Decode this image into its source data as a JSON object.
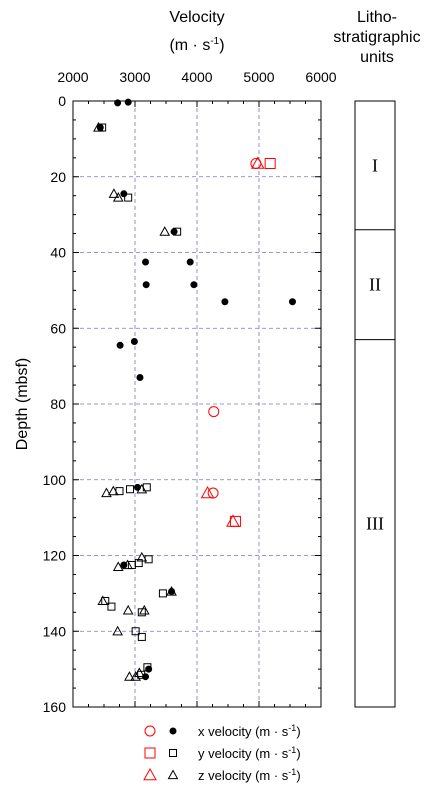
{
  "chart_data": {
    "type": "scatter",
    "title_line1": "Velocity",
    "title_line2_main": "(m · s",
    "title_line2_sup": "-1",
    "title_line2_close": ")",
    "ylabel": "Depth (mbsf)",
    "xlim": [
      2000,
      6000
    ],
    "ylim": [
      0,
      160
    ],
    "xticks": [
      2000,
      3000,
      4000,
      5000,
      6000
    ],
    "xtick_labels": [
      "2000",
      "3000",
      "4000",
      "5000",
      "6000"
    ],
    "yticks": [
      0,
      20,
      40,
      60,
      80,
      100,
      120,
      140,
      160
    ],
    "ytick_labels": [
      "0",
      "20",
      "40",
      "60",
      "80",
      "100",
      "120",
      "140",
      "160"
    ],
    "grid": true,
    "series": [
      {
        "name": "x velocity (m · s-1)",
        "component": "x",
        "kind": "lab",
        "marker": "circle-open",
        "color": "#ff0000",
        "points": [
          [
            4950,
            16.5
          ],
          [
            4260,
            103.5
          ],
          [
            4270,
            82
          ]
        ]
      },
      {
        "name": "x velocity (m · s-1)",
        "component": "x",
        "kind": "field",
        "marker": "circle-filled",
        "color": "#000000",
        "points": [
          [
            2720,
            0.5
          ],
          [
            2890,
            0.3
          ],
          [
            2440,
            7
          ],
          [
            2820,
            24.5
          ],
          [
            3630,
            34.5
          ],
          [
            3170,
            42.5
          ],
          [
            3890,
            42.5
          ],
          [
            3180,
            48.5
          ],
          [
            3950,
            48.5
          ],
          [
            4450,
            53
          ],
          [
            5540,
            53
          ],
          [
            2990,
            63.5
          ],
          [
            2760,
            64.5
          ],
          [
            3080,
            73
          ],
          [
            3040,
            102
          ],
          [
            2820,
            122.5
          ],
          [
            3590,
            129.5
          ],
          [
            3220,
            150
          ],
          [
            3170,
            152
          ]
        ]
      },
      {
        "name": "y velocity (m · s-1)",
        "component": "y",
        "kind": "lab",
        "marker": "square-open",
        "color": "#ff0000",
        "points": [
          [
            5180,
            16.5
          ],
          [
            4620,
            111
          ]
        ]
      },
      {
        "name": "y velocity (m · s-1)",
        "component": "y",
        "kind": "field",
        "marker": "square-open",
        "color": "#000000",
        "points": [
          [
            2470,
            7
          ],
          [
            2890,
            25.5
          ],
          [
            3680,
            34.5
          ],
          [
            2750,
            103
          ],
          [
            2920,
            102.5
          ],
          [
            3190,
            102
          ],
          [
            3220,
            121
          ],
          [
            2950,
            122.5
          ],
          [
            3060,
            122
          ],
          [
            2520,
            132
          ],
          [
            2620,
            133.5
          ],
          [
            3450,
            130
          ],
          [
            3110,
            135
          ],
          [
            3010,
            140
          ],
          [
            3110,
            141.5
          ],
          [
            3200,
            149.5
          ],
          [
            3100,
            151.5
          ]
        ]
      },
      {
        "name": "z velocity (m · s-1)",
        "component": "z",
        "kind": "lab",
        "marker": "triangle-open",
        "color": "#ff0000",
        "points": [
          [
            4980,
            16.5
          ],
          [
            4170,
            103.5
          ],
          [
            4580,
            111
          ]
        ]
      },
      {
        "name": "z velocity (m · s-1)",
        "component": "z",
        "kind": "field",
        "marker": "triangle-open",
        "color": "#000000",
        "points": [
          [
            2410,
            7
          ],
          [
            2660,
            24.5
          ],
          [
            2730,
            25.5
          ],
          [
            3480,
            34.5
          ],
          [
            2540,
            103.5
          ],
          [
            2650,
            103
          ],
          [
            3110,
            102.5
          ],
          [
            3110,
            120.5
          ],
          [
            2730,
            123
          ],
          [
            2880,
            122.5
          ],
          [
            2480,
            132
          ],
          [
            3150,
            134.5
          ],
          [
            2890,
            134.5
          ],
          [
            2720,
            140
          ],
          [
            3590,
            129.5
          ],
          [
            2910,
            152
          ],
          [
            3010,
            152
          ],
          [
            3070,
            151
          ]
        ]
      }
    ]
  },
  "units_panel": {
    "title_lines": [
      "Litho-",
      "stratigraphic",
      "units"
    ],
    "boundaries_depth": [
      0,
      34,
      63,
      160
    ],
    "units": [
      {
        "label": "I",
        "top": 0,
        "bottom": 34
      },
      {
        "label": "II",
        "top": 34,
        "bottom": 63
      },
      {
        "label": "III",
        "top": 63,
        "bottom": 160
      }
    ]
  },
  "legend": {
    "rows": [
      {
        "text": "x velocity (m · s",
        "sup": "-1",
        "close": ")",
        "lab_marker": "circle-open",
        "field_marker": "circle-filled"
      },
      {
        "text": "y velocity (m · s",
        "sup": "-1",
        "close": ")",
        "lab_marker": "square-open",
        "field_marker": "square-open"
      },
      {
        "text": "z velocity (m · s",
        "sup": "-1",
        "close": ")",
        "lab_marker": "triangle-open",
        "field_marker": "triangle-open"
      }
    ],
    "lab_color": "#ff0000",
    "field_color": "#000000"
  },
  "colors": {
    "grid": "#7777bb",
    "axis": "#000000",
    "lab": "#ff0000",
    "field": "#000000"
  }
}
